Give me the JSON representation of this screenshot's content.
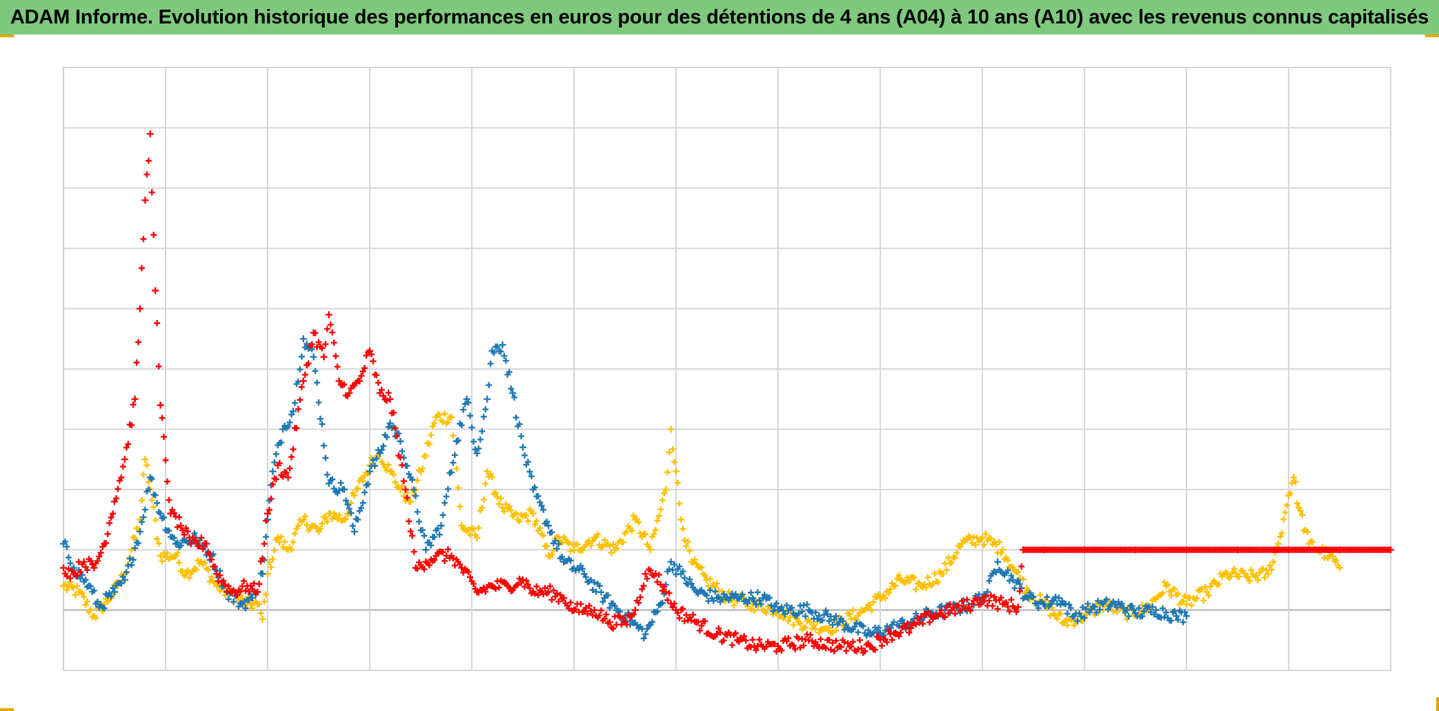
{
  "title": "ADAM Informe. Evolution historique des performances en euros pour des détentions de 4 ans (A04) à 10 ans (A10) avec les revenus connus capitalisés",
  "colors": {
    "title_background": "#7fc97f",
    "corner_marks": "#e0a800"
  },
  "chart_data": {
    "type": "scatter",
    "marker": "plus",
    "title": "ADAM Informe. Evolution historique des performances en euros pour des détentions de 4 ans (A04) à 10 ans (A10) avec les revenus connus capitalisés",
    "xlabel": "",
    "ylabel": "",
    "tick_labels_visible": false,
    "legend": "none",
    "grid": true,
    "xlim": [
      0,
      13
    ],
    "ylim": [
      -1,
      9
    ],
    "x_gridlines": [
      1,
      2,
      3,
      4,
      5,
      6,
      7,
      8,
      9,
      10,
      11,
      12,
      13
    ],
    "y_gridlines": [
      -1,
      0,
      1,
      2,
      3,
      4,
      5,
      6,
      7,
      8,
      9
    ],
    "series": [
      {
        "color": "#ffc000",
        "points": [
          [
            0,
            0.4
          ],
          [
            0.15,
            0.3
          ],
          [
            0.3,
            -0.1
          ],
          [
            0.45,
            0.2
          ],
          [
            0.6,
            0.6
          ],
          [
            0.75,
            1.5
          ],
          [
            0.8,
            2.5
          ],
          [
            0.85,
            2.0
          ],
          [
            0.95,
            0.9
          ],
          [
            1.1,
            0.9
          ],
          [
            1.2,
            0.6
          ],
          [
            1.35,
            0.8
          ],
          [
            1.5,
            0.4
          ],
          [
            1.6,
            0.3
          ],
          [
            1.8,
            0.1
          ],
          [
            1.9,
            0.1
          ],
          [
            1.95,
            -0.15
          ],
          [
            2.0,
            0.6
          ],
          [
            2.1,
            1.2
          ],
          [
            2.2,
            1.0
          ],
          [
            2.35,
            1.5
          ],
          [
            2.5,
            1.3
          ],
          [
            2.6,
            1.6
          ],
          [
            2.75,
            1.5
          ],
          [
            2.85,
            1.9
          ],
          [
            3.0,
            2.4
          ],
          [
            3.1,
            2.6
          ],
          [
            3.2,
            2.3
          ],
          [
            3.3,
            2.0
          ],
          [
            3.4,
            1.8
          ],
          [
            3.5,
            2.3
          ],
          [
            3.65,
            3.2
          ],
          [
            3.8,
            3.2
          ],
          [
            3.9,
            1.4
          ],
          [
            4.05,
            1.2
          ],
          [
            4.15,
            2.3
          ],
          [
            4.3,
            1.7
          ],
          [
            4.45,
            1.5
          ],
          [
            4.6,
            1.6
          ],
          [
            4.75,
            0.9
          ],
          [
            4.85,
            1.2
          ],
          [
            5.0,
            1.0
          ],
          [
            5.2,
            1.2
          ],
          [
            5.4,
            1.0
          ],
          [
            5.6,
            1.5
          ],
          [
            5.75,
            1.0
          ],
          [
            5.9,
            2.0
          ],
          [
            5.95,
            3.0
          ],
          [
            6.0,
            2.3
          ],
          [
            6.05,
            1.5
          ],
          [
            6.15,
            0.8
          ],
          [
            6.3,
            0.5
          ],
          [
            6.5,
            0.2
          ],
          [
            6.75,
            0.1
          ],
          [
            7.0,
            0.0
          ],
          [
            7.2,
            -0.2
          ],
          [
            7.5,
            -0.3
          ],
          [
            7.8,
            -0.05
          ],
          [
            8.0,
            0.2
          ],
          [
            8.2,
            0.5
          ],
          [
            8.4,
            0.4
          ],
          [
            8.6,
            0.6
          ],
          [
            8.8,
            1.1
          ],
          [
            9.0,
            1.2
          ],
          [
            9.2,
            1.0
          ],
          [
            9.3,
            0.7
          ],
          [
            9.45,
            0.3
          ],
          [
            9.6,
            0.1
          ],
          [
            9.8,
            -0.2
          ],
          [
            10.0,
            -0.1
          ],
          [
            10.2,
            0.1
          ],
          [
            10.4,
            -0.05
          ],
          [
            10.6,
            0.0
          ],
          [
            10.8,
            0.4
          ],
          [
            11.0,
            0.1
          ],
          [
            11.2,
            0.3
          ],
          [
            11.4,
            0.6
          ],
          [
            11.6,
            0.55
          ],
          [
            11.8,
            0.6
          ],
          [
            11.9,
            1.1
          ],
          [
            12.0,
            1.9
          ],
          [
            12.05,
            2.2
          ],
          [
            12.1,
            1.7
          ],
          [
            12.2,
            1.1
          ],
          [
            12.4,
            0.9
          ],
          [
            12.5,
            0.7
          ]
        ]
      },
      {
        "color": "#1f78b4",
        "points": [
          [
            0,
            1.1
          ],
          [
            0.1,
            0.7
          ],
          [
            0.25,
            0.4
          ],
          [
            0.35,
            0.05
          ],
          [
            0.5,
            0.3
          ],
          [
            0.6,
            0.5
          ],
          [
            0.75,
            1.3
          ],
          [
            0.85,
            2.2
          ],
          [
            0.95,
            1.6
          ],
          [
            1.1,
            1.1
          ],
          [
            1.3,
            1.2
          ],
          [
            1.45,
            0.9
          ],
          [
            1.6,
            0.3
          ],
          [
            1.75,
            0.1
          ],
          [
            1.85,
            0.2
          ],
          [
            1.95,
            0.6
          ],
          [
            2.0,
            1.5
          ],
          [
            2.05,
            2.3
          ],
          [
            2.15,
            3.0
          ],
          [
            2.25,
            3.3
          ],
          [
            2.35,
            4.5
          ],
          [
            2.45,
            4.2
          ],
          [
            2.6,
            2.1
          ],
          [
            2.75,
            2.0
          ],
          [
            2.85,
            1.3
          ],
          [
            3.0,
            2.3
          ],
          [
            3.1,
            2.6
          ],
          [
            3.2,
            3.1
          ],
          [
            3.3,
            2.8
          ],
          [
            3.4,
            2.2
          ],
          [
            3.55,
            1.0
          ],
          [
            3.7,
            1.4
          ],
          [
            3.85,
            2.8
          ],
          [
            3.95,
            3.5
          ],
          [
            4.05,
            2.6
          ],
          [
            4.15,
            3.5
          ],
          [
            4.2,
            4.3
          ],
          [
            4.3,
            4.4
          ],
          [
            4.4,
            3.6
          ],
          [
            4.5,
            2.7
          ],
          [
            4.6,
            2.0
          ],
          [
            4.75,
            1.4
          ],
          [
            4.9,
            0.8
          ],
          [
            5.1,
            0.6
          ],
          [
            5.3,
            0.2
          ],
          [
            5.5,
            -0.1
          ],
          [
            5.7,
            -0.4
          ],
          [
            5.85,
            0.1
          ],
          [
            5.95,
            0.8
          ],
          [
            6.05,
            0.6
          ],
          [
            6.2,
            0.3
          ],
          [
            6.4,
            0.2
          ],
          [
            6.6,
            0.2
          ],
          [
            6.85,
            0.2
          ],
          [
            7.0,
            0.0
          ],
          [
            7.3,
            0.0
          ],
          [
            7.6,
            -0.2
          ],
          [
            7.9,
            -0.4
          ],
          [
            8.1,
            -0.3
          ],
          [
            8.3,
            -0.2
          ],
          [
            8.5,
            -0.05
          ],
          [
            8.7,
            0.0
          ],
          [
            8.9,
            0.1
          ],
          [
            9.05,
            0.3
          ],
          [
            9.15,
            0.8
          ],
          [
            9.3,
            0.5
          ],
          [
            9.45,
            0.2
          ],
          [
            9.6,
            0.1
          ],
          [
            9.75,
            0.2
          ],
          [
            9.9,
            -0.1
          ],
          [
            10.1,
            0.05
          ],
          [
            10.3,
            0.1
          ],
          [
            10.5,
            -0.05
          ],
          [
            10.7,
            0.0
          ],
          [
            10.9,
            -0.1
          ],
          [
            11.0,
            -0.1
          ]
        ]
      },
      {
        "color": "#ff0000",
        "points": [
          [
            0,
            0.7
          ],
          [
            0.1,
            0.6
          ],
          [
            0.2,
            0.8
          ],
          [
            0.3,
            0.7
          ],
          [
            0.4,
            1.1
          ],
          [
            0.5,
            1.8
          ],
          [
            0.6,
            2.5
          ],
          [
            0.7,
            3.5
          ],
          [
            0.75,
            5.0
          ],
          [
            0.8,
            6.8
          ],
          [
            0.85,
            7.9
          ],
          [
            0.9,
            5.3
          ],
          [
            0.95,
            3.4
          ],
          [
            1.05,
            1.6
          ],
          [
            1.15,
            1.4
          ],
          [
            1.25,
            1.1
          ],
          [
            1.4,
            1.1
          ],
          [
            1.5,
            0.6
          ],
          [
            1.65,
            0.3
          ],
          [
            1.8,
            0.4
          ],
          [
            1.9,
            0.3
          ],
          [
            2.0,
            1.6
          ],
          [
            2.1,
            2.4
          ],
          [
            2.2,
            2.2
          ],
          [
            2.35,
            3.8
          ],
          [
            2.45,
            4.6
          ],
          [
            2.55,
            4.2
          ],
          [
            2.6,
            4.9
          ],
          [
            2.7,
            3.8
          ],
          [
            2.8,
            3.6
          ],
          [
            2.9,
            3.8
          ],
          [
            3.0,
            4.3
          ],
          [
            3.1,
            3.6
          ],
          [
            3.2,
            3.5
          ],
          [
            3.35,
            2.0
          ],
          [
            3.45,
            0.7
          ],
          [
            3.55,
            0.8
          ],
          [
            3.65,
            0.9
          ],
          [
            3.8,
            0.9
          ],
          [
            3.9,
            0.7
          ],
          [
            4.05,
            0.3
          ],
          [
            4.2,
            0.4
          ],
          [
            4.35,
            0.4
          ],
          [
            4.5,
            0.5
          ],
          [
            4.6,
            0.3
          ],
          [
            4.75,
            0.3
          ],
          [
            4.9,
            0.2
          ],
          [
            5.0,
            0.0
          ],
          [
            5.2,
            0.0
          ],
          [
            5.35,
            -0.2
          ],
          [
            5.5,
            -0.2
          ],
          [
            5.6,
            0.0
          ],
          [
            5.7,
            0.6
          ],
          [
            5.8,
            0.6
          ],
          [
            5.9,
            0.3
          ],
          [
            6.0,
            0.0
          ],
          [
            6.2,
            -0.2
          ],
          [
            6.4,
            -0.4
          ],
          [
            6.6,
            -0.5
          ],
          [
            6.8,
            -0.6
          ],
          [
            7.0,
            -0.6
          ],
          [
            7.3,
            -0.5
          ],
          [
            7.6,
            -0.6
          ],
          [
            7.9,
            -0.6
          ],
          [
            8.1,
            -0.4
          ],
          [
            8.3,
            -0.3
          ],
          [
            8.5,
            -0.1
          ],
          [
            8.7,
            0.0
          ],
          [
            8.9,
            0.1
          ],
          [
            9.0,
            0.2
          ],
          [
            9.2,
            0.1
          ],
          [
            9.35,
            0.05
          ],
          [
            9.4,
            1.0
          ],
          [
            9.6,
            1.0
          ],
          [
            10.0,
            1.0
          ],
          [
            10.5,
            1.0
          ],
          [
            11.0,
            1.0
          ],
          [
            11.5,
            1.0
          ],
          [
            12.0,
            1.0
          ],
          [
            12.5,
            1.0
          ],
          [
            13.0,
            1.0
          ]
        ]
      }
    ]
  }
}
